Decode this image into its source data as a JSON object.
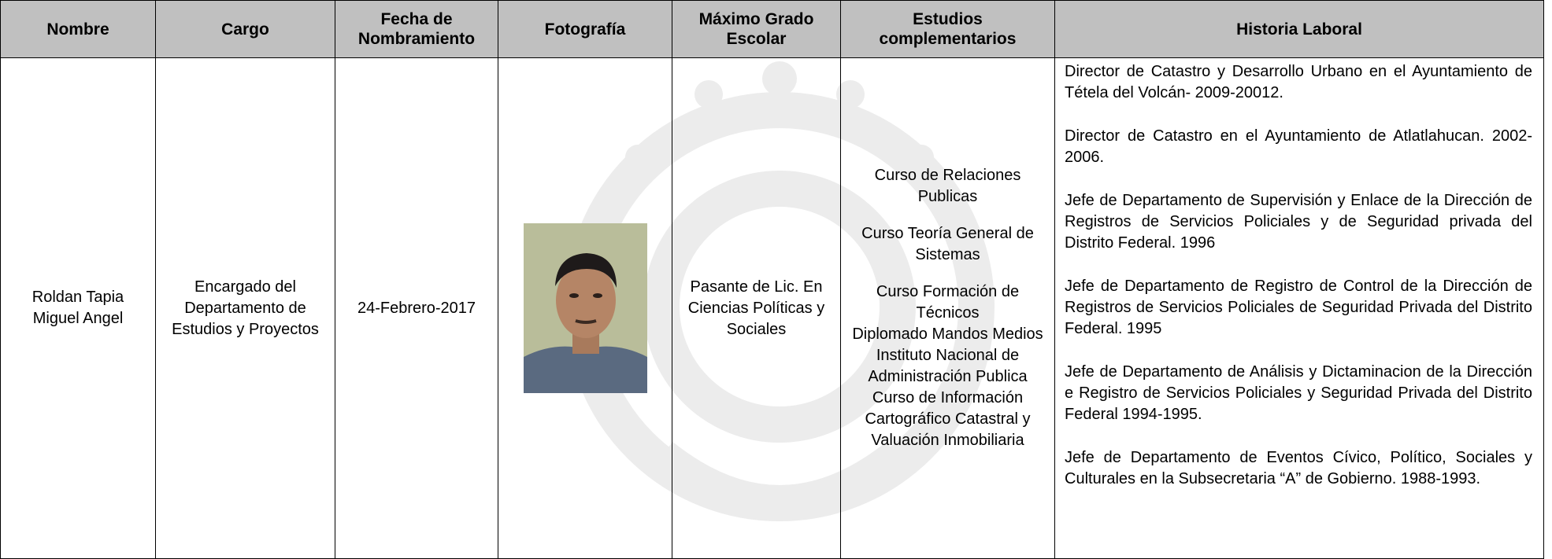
{
  "table": {
    "headers": [
      "Nombre",
      "Cargo",
      "Fecha de Nombramiento",
      "Fotografía",
      "Máximo Grado Escolar",
      "Estudios complementarios",
      "Historia Laboral"
    ],
    "rows": [
      {
        "nombre": "Roldan Tapia Miguel Angel",
        "cargo": "Encargado del Departamento de Estudios y Proyectos",
        "fecha": "24-Febrero-2017",
        "grado": "Pasante de Lic. En Ciencias Políticas y Sociales",
        "estudios": [
          "Curso de Relaciones Publicas",
          "Curso Teoría General de Sistemas",
          "Curso Formación de Técnicos",
          "Diplomado Mandos Medios Instituto Nacional de Administración Publica",
          "Curso de Información Cartográfico Catastral y Valuación Inmobiliaria"
        ],
        "historia": [
          "Director de Catastro y Desarrollo Urbano en el Ayuntamiento de Tétela del Volcán- 2009-20012.",
          "Director de Catastro en el Ayuntamiento de Atlatlahucan. 2002-2006.",
          "Jefe de Departamento de Supervisión y Enlace de la Dirección de Registros de Servicios Policiales y de Seguridad privada del Distrito Federal. 1996",
          "Jefe de Departamento de Registro de Control de la Dirección de Registros de Servicios Policiales de Seguridad Privada del Distrito Federal. 1995",
          "Jefe de Departamento de Análisis y Dictaminacion de la Dirección e Registro de Servicios Policiales y Seguridad Privada del Distrito Federal 1994-1995.",
          "Jefe de Departamento de Eventos Cívico, Político, Sociales y Culturales en la Subsecretaria “A” de Gobierno. 1988-1993."
        ]
      }
    ]
  }
}
